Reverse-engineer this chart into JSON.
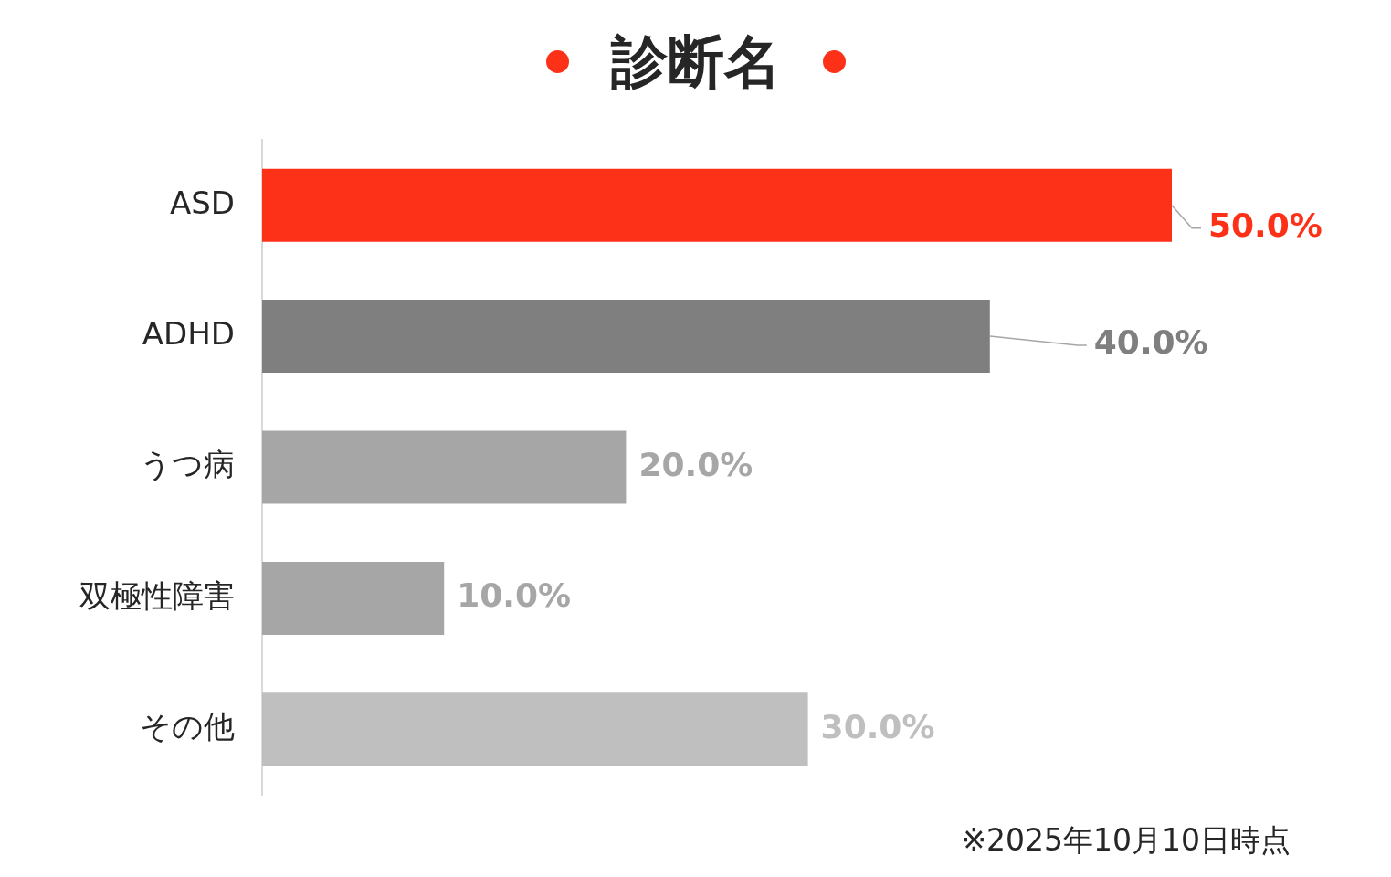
{
  "chart_data": {
    "type": "bar",
    "orientation": "horizontal",
    "title": "診断名",
    "categories": [
      "ASD",
      "ADHD",
      "うつ病",
      "双極性障害",
      "その他"
    ],
    "values": [
      50,
      40,
      20,
      10,
      30
    ],
    "colors": [
      "#fd3117",
      "#7f7f7f",
      "#a6a6a6",
      "#a6a6a6",
      "#bfbfbf"
    ],
    "value_labels": [
      "50.0%",
      "40.0%",
      "20.0%",
      "10.0%",
      "30.0%"
    ],
    "annotations": [
      "※2025年10月10日時点"
    ],
    "grid": false,
    "legend": false
  }
}
